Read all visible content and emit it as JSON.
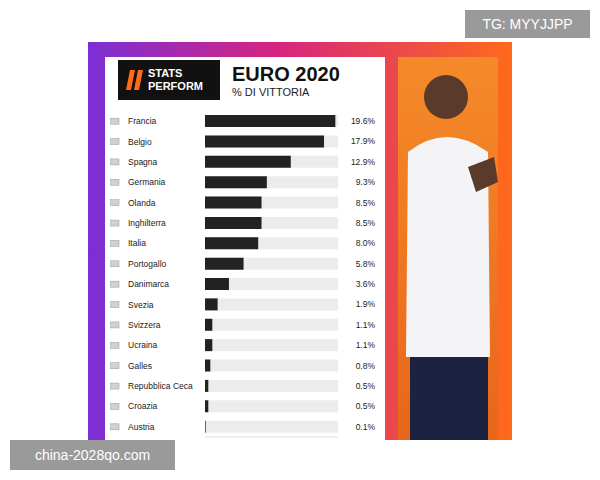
{
  "chart_data": {
    "type": "bar",
    "orientation": "horizontal",
    "title": "EURO 2020",
    "subtitle": "% DI VITTORIA",
    "logo": "STATS PERFORM",
    "watermarks": [
      "TG: MYYJJPP",
      "china-2028qo.com"
    ],
    "categories": [
      "Francia",
      "Belgio",
      "Spagna",
      "Germania",
      "Olanda",
      "Inghilterra",
      "Italia",
      "Portogallo",
      "Danimarca",
      "Svezia",
      "Svizzera",
      "Ucraina",
      "Galles",
      "Repubblica Ceca",
      "Croazia",
      "Austria"
    ],
    "values": [
      19.6,
      17.9,
      12.9,
      9.3,
      8.5,
      8.5,
      8.0,
      5.8,
      3.6,
      1.9,
      1.1,
      1.1,
      0.8,
      0.5,
      0.5,
      0.1
    ],
    "value_labels": [
      "19.6%",
      "17.9%",
      "12.9%",
      "9.3%",
      "8.5%",
      "8.5%",
      "8.0%",
      "5.8%",
      "3.6%",
      "1.9%",
      "1.1%",
      "1.1%",
      "0.8%",
      "0.5%",
      "0.5%",
      "0.1%"
    ],
    "color": "#222222",
    "xlim": [
      0,
      20
    ],
    "data_labels": true,
    "tick_labels": "y",
    "grid": false
  }
}
